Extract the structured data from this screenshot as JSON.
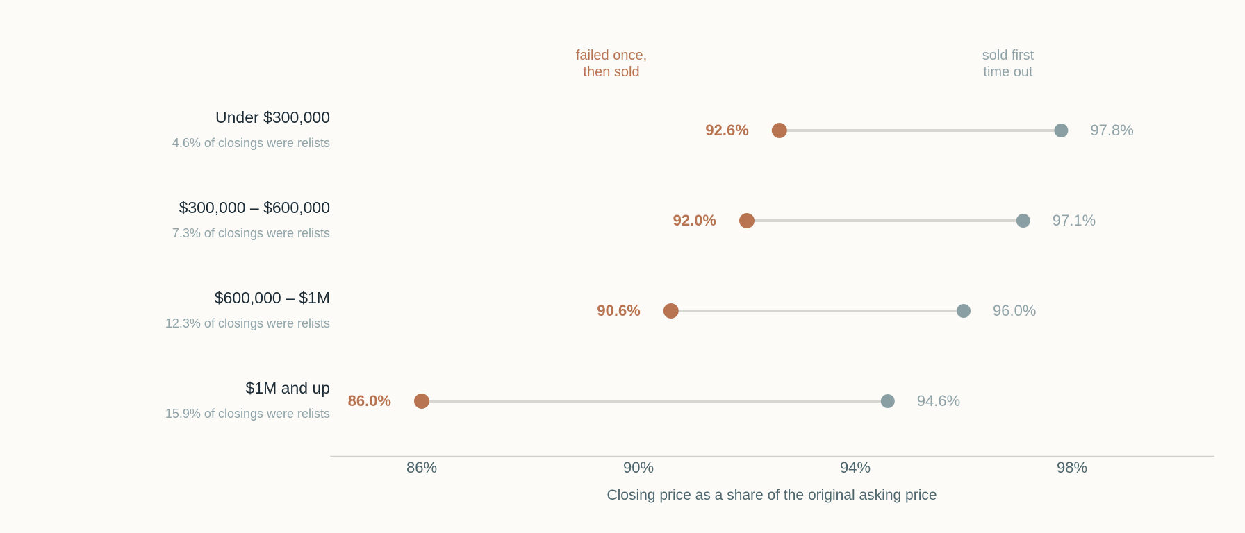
{
  "colors": {
    "background": "#fcfbf7",
    "failed_once": "#b87350",
    "sold_first": "#8a9fa4",
    "connector": "#d8d6d0",
    "axis": "#d0d0cc",
    "category_text": "#1b2b36",
    "muted_text": "#8fa3a8",
    "axis_text": "#4d666d"
  },
  "chart_data": {
    "type": "dumbbell",
    "xlabel": "Closing price as a share of the original asking price",
    "x_ticks": [
      86,
      90,
      94,
      98
    ],
    "x_tick_labels": [
      "86%",
      "90%",
      "94%",
      "98%"
    ],
    "xlim": [
      84.3,
      100.6
    ],
    "series": [
      {
        "key": "failed",
        "name": "failed once,\nthen sold",
        "legend_lines": [
          "failed once,",
          "then sold"
        ]
      },
      {
        "key": "first",
        "name": "sold first\ntime out",
        "legend_lines": [
          "sold first",
          "time out"
        ]
      }
    ],
    "categories": [
      {
        "label": "Under $300,000",
        "sub": "4.6% of closings were relists",
        "failed": 92.6,
        "failed_label": "92.6%",
        "first": 97.8,
        "first_label": "97.8%"
      },
      {
        "label": "$300,000 – $600,000",
        "sub": "7.3% of closings were relists",
        "failed": 92.0,
        "failed_label": "92.0%",
        "first": 97.1,
        "first_label": "97.1%"
      },
      {
        "label": "$600,000 – $1M",
        "sub": "12.3% of closings were relists",
        "failed": 90.6,
        "failed_label": "90.6%",
        "first": 96.0,
        "first_label": "96.0%"
      },
      {
        "label": "$1M and up",
        "sub": "15.9% of closings were relists",
        "failed": 86.0,
        "failed_label": "86.0%",
        "first": 94.6,
        "first_label": "94.6%"
      }
    ]
  }
}
